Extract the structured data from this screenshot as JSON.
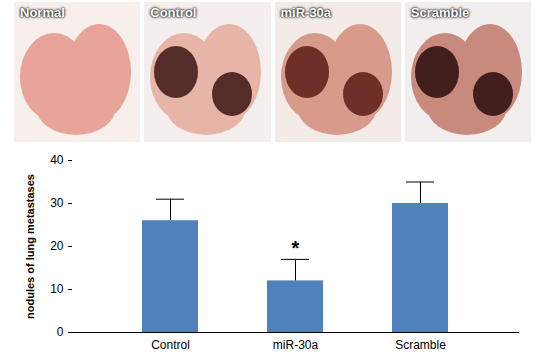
{
  "panels": {
    "labels": [
      "Normal",
      "Control",
      "miR-30a",
      "Scramble"
    ]
  },
  "chart_data": {
    "type": "bar",
    "categories": [
      "Control",
      "miR-30a",
      "Scramble"
    ],
    "values": [
      26,
      12,
      30
    ],
    "errors": [
      5,
      5,
      5
    ],
    "color": "#4f81bd",
    "ylabel": "nodules of lung metastases",
    "ylim": [
      0,
      40
    ],
    "yticks": [
      0,
      10,
      20,
      30,
      40
    ],
    "grid": false,
    "annotations": [
      {
        "text": "*",
        "category": "miR-30a"
      }
    ]
  }
}
